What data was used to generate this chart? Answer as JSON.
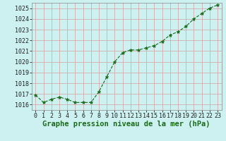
{
  "x": [
    0,
    1,
    2,
    3,
    4,
    5,
    6,
    7,
    8,
    9,
    10,
    11,
    12,
    13,
    14,
    15,
    16,
    17,
    18,
    19,
    20,
    21,
    22,
    23
  ],
  "y": [
    1016.9,
    1016.2,
    1016.5,
    1016.7,
    1016.5,
    1016.2,
    1016.2,
    1016.2,
    1017.2,
    1018.6,
    1020.0,
    1020.85,
    1021.1,
    1021.1,
    1021.3,
    1021.5,
    1021.9,
    1022.5,
    1022.8,
    1023.3,
    1024.0,
    1024.5,
    1025.0,
    1025.3
  ],
  "line_color": "#1a6b1a",
  "marker": "*",
  "marker_size": 3.5,
  "bg_color": "#cdf0f0",
  "grid_color": "#d4a0a0",
  "xlabel": "Graphe pression niveau de la mer (hPa)",
  "ylim": [
    1015.5,
    1025.5
  ],
  "yticks": [
    1016,
    1017,
    1018,
    1019,
    1020,
    1021,
    1022,
    1023,
    1024,
    1025
  ],
  "xticks": [
    0,
    1,
    2,
    3,
    4,
    5,
    6,
    7,
    8,
    9,
    10,
    11,
    12,
    13,
    14,
    15,
    16,
    17,
    18,
    19,
    20,
    21,
    22,
    23
  ],
  "xlabel_fontsize": 7.5,
  "tick_fontsize": 6.0,
  "line_width": 0.8
}
